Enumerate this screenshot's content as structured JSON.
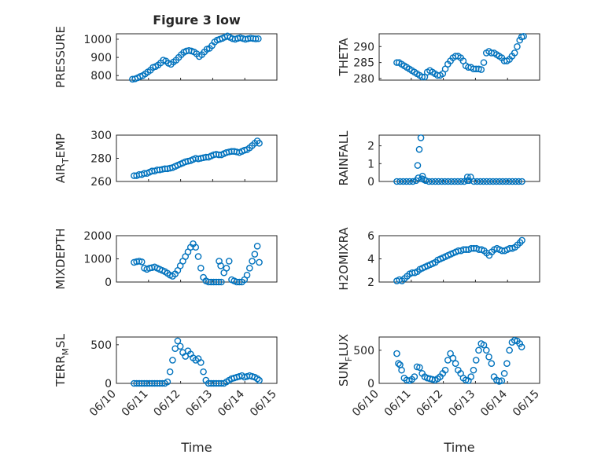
{
  "figure_title": "Figure 3 low",
  "colors": {
    "marker": "#0072bd",
    "axis": "#262626",
    "grid": "#bdbdbd"
  },
  "chart_data": [
    {
      "id": "pressure",
      "type": "scatter",
      "ylabel": "PRESSURE",
      "xlim": [
        0,
        5
      ],
      "ylim": [
        775,
        1030
      ],
      "yticks": [
        800,
        900,
        1000
      ],
      "yticklabels": [
        "800",
        "900",
        "1000"
      ],
      "grid": true,
      "x": [
        0.5,
        0.58,
        0.66,
        0.74,
        0.82,
        0.9,
        0.98,
        1.06,
        1.14,
        1.22,
        1.3,
        1.38,
        1.46,
        1.54,
        1.62,
        1.7,
        1.78,
        1.86,
        1.94,
        2.02,
        2.1,
        2.18,
        2.26,
        2.34,
        2.42,
        2.5,
        2.58,
        2.66,
        2.74,
        2.82,
        2.9,
        2.98,
        3.06,
        3.14,
        3.22,
        3.3,
        3.38,
        3.46,
        3.54,
        3.62,
        3.7,
        3.78,
        3.86,
        3.94,
        4.02,
        4.1,
        4.18,
        4.26,
        4.34,
        4.42
      ],
      "y": [
        780,
        782,
        788,
        795,
        800,
        810,
        820,
        830,
        845,
        850,
        858,
        870,
        885,
        880,
        868,
        862,
        875,
        885,
        900,
        915,
        928,
        935,
        938,
        935,
        930,
        920,
        905,
        915,
        930,
        945,
        950,
        965,
        985,
        995,
        1000,
        1005,
        1012,
        1018,
        1010,
        1003,
        1000,
        1005,
        1008,
        1004,
        1000,
        1003,
        1006,
        1004,
        1002,
        1003
      ]
    },
    {
      "id": "theta",
      "type": "scatter",
      "ylabel": "THETA",
      "xlim": [
        0,
        5
      ],
      "ylim": [
        279.5,
        294
      ],
      "yticks": [
        280,
        285,
        290
      ],
      "yticklabels": [
        "280",
        "285",
        "290"
      ],
      "grid": true,
      "x": [
        0.55,
        0.62,
        0.7,
        0.78,
        0.86,
        0.94,
        1.02,
        1.1,
        1.18,
        1.26,
        1.34,
        1.42,
        1.5,
        1.58,
        1.66,
        1.74,
        1.82,
        1.9,
        1.98,
        2.06,
        2.14,
        2.22,
        2.3,
        2.38,
        2.46,
        2.54,
        2.62,
        2.7,
        2.78,
        2.86,
        2.94,
        3.02,
        3.1,
        3.18,
        3.26,
        3.34,
        3.42,
        3.5,
        3.58,
        3.66,
        3.74,
        3.82,
        3.9,
        3.98,
        4.06,
        4.14,
        4.22,
        4.3,
        4.38,
        4.44,
        4.5
      ],
      "y": [
        285,
        285,
        284.5,
        284,
        283.5,
        283,
        282.5,
        282,
        281.5,
        281,
        280.5,
        280.5,
        282,
        282.5,
        282,
        281.5,
        281,
        281,
        281.5,
        283,
        284.5,
        285.5,
        286.5,
        287,
        287,
        286.5,
        285.5,
        284,
        283.5,
        283.5,
        283,
        283,
        283,
        282.8,
        285,
        288,
        288.5,
        288,
        288,
        287.5,
        287,
        286.5,
        285.5,
        285.5,
        286,
        287,
        288,
        290,
        292,
        293,
        293.2
      ]
    },
    {
      "id": "air_temp",
      "type": "scatter",
      "ylabel": "AIR",
      "ylabel_sub": "T",
      "ylabel_rest": "EMP",
      "xlim": [
        0,
        5
      ],
      "ylim": [
        260,
        300
      ],
      "yticks": [
        260,
        280,
        300
      ],
      "yticklabels": [
        "260",
        "280",
        "300"
      ],
      "grid": true,
      "x": [
        0.55,
        0.63,
        0.71,
        0.79,
        0.87,
        0.95,
        1.03,
        1.11,
        1.19,
        1.27,
        1.35,
        1.43,
        1.51,
        1.59,
        1.67,
        1.75,
        1.83,
        1.91,
        1.99,
        2.07,
        2.15,
        2.23,
        2.31,
        2.39,
        2.47,
        2.55,
        2.63,
        2.71,
        2.79,
        2.87,
        2.95,
        3.03,
        3.11,
        3.19,
        3.27,
        3.35,
        3.43,
        3.51,
        3.59,
        3.67,
        3.75,
        3.83,
        3.91,
        3.99,
        4.07,
        4.15,
        4.23,
        4.31,
        4.39,
        4.45
      ],
      "y": [
        265,
        265,
        266,
        266,
        267,
        267,
        268,
        269,
        269,
        270,
        270,
        270.5,
        271,
        271,
        271.5,
        272,
        273,
        274,
        275,
        276,
        277,
        277.5,
        278,
        279,
        280,
        279.5,
        280,
        280.5,
        281,
        281,
        282,
        283,
        283.5,
        283,
        283,
        284,
        285,
        285.5,
        286,
        286,
        285.5,
        285,
        286,
        287,
        287.5,
        289,
        291,
        293,
        295,
        293
      ]
    },
    {
      "id": "rainfall",
      "type": "scatter",
      "ylabel": "RAINFALL",
      "xlim": [
        0,
        5
      ],
      "ylim": [
        0,
        2.6
      ],
      "yticks": [
        0,
        1,
        2
      ],
      "yticklabels": [
        "0",
        "1",
        "2"
      ],
      "grid": true,
      "x": [
        0.55,
        0.65,
        0.75,
        0.85,
        0.95,
        1.05,
        1.15,
        1.2,
        1.25,
        1.3,
        1.35,
        1.4,
        1.45,
        1.55,
        1.65,
        1.75,
        1.85,
        1.95,
        2.05,
        2.15,
        2.25,
        2.35,
        2.45,
        2.55,
        2.65,
        2.75,
        2.85,
        2.95,
        3.05,
        3.15,
        3.25,
        3.35,
        3.45,
        3.55,
        3.65,
        3.75,
        3.85,
        3.95,
        4.05,
        4.15,
        4.25,
        4.35,
        4.45,
        1.22,
        1.33,
        2.75,
        2.8
      ],
      "y": [
        0,
        0,
        0,
        0,
        0,
        0,
        0.05,
        0.9,
        1.8,
        2.45,
        0.3,
        0.1,
        0.05,
        0,
        0,
        0,
        0,
        0,
        0,
        0,
        0,
        0,
        0,
        0,
        0,
        0.25,
        0.25,
        0,
        0,
        0,
        0,
        0,
        0,
        0,
        0,
        0,
        0,
        0,
        0,
        0,
        0,
        0,
        0,
        0.2,
        0.15,
        0.05,
        0.05
      ]
    },
    {
      "id": "mixdepth",
      "type": "scatter",
      "ylabel": "MIXDEPTH",
      "xlim": [
        0,
        5
      ],
      "ylim": [
        0,
        2000
      ],
      "yticks": [
        0,
        1000,
        2000
      ],
      "yticklabels": [
        "0",
        "1000",
        "2000"
      ],
      "grid": true,
      "x": [
        0.55,
        0.63,
        0.71,
        0.79,
        0.87,
        0.95,
        1.03,
        1.11,
        1.19,
        1.27,
        1.35,
        1.43,
        1.51,
        1.59,
        1.67,
        1.75,
        1.83,
        1.91,
        1.99,
        2.07,
        2.15,
        2.23,
        2.31,
        2.39,
        2.47,
        2.55,
        2.63,
        2.71,
        2.79,
        2.87,
        2.95,
        3.03,
        3.11,
        3.19,
        3.27,
        3.35,
        3.43,
        3.51,
        3.59,
        3.67,
        3.75,
        3.83,
        3.91,
        3.99,
        4.07,
        4.15,
        4.23,
        4.31,
        4.39,
        4.45,
        3.2,
        3.25
      ],
      "y": [
        850,
        880,
        900,
        870,
        600,
        550,
        600,
        620,
        650,
        600,
        550,
        500,
        450,
        380,
        300,
        250,
        350,
        500,
        700,
        900,
        1100,
        1300,
        1500,
        1650,
        1500,
        1100,
        600,
        200,
        50,
        0,
        0,
        0,
        0,
        0,
        0,
        400,
        600,
        900,
        100,
        50,
        0,
        0,
        0,
        100,
        300,
        600,
        900,
        1200,
        1550,
        850,
        900,
        700
      ]
    },
    {
      "id": "h2omixra",
      "type": "scatter",
      "ylabel": "H2OMIXRA",
      "xlim": [
        0,
        5
      ],
      "ylim": [
        2,
        6
      ],
      "yticks": [
        2,
        4,
        6
      ],
      "yticklabels": [
        "2",
        "4",
        "6"
      ],
      "grid": true,
      "x": [
        0.55,
        0.63,
        0.71,
        0.79,
        0.87,
        0.95,
        1.03,
        1.11,
        1.19,
        1.27,
        1.35,
        1.43,
        1.51,
        1.59,
        1.67,
        1.75,
        1.83,
        1.91,
        1.99,
        2.07,
        2.15,
        2.23,
        2.31,
        2.39,
        2.47,
        2.55,
        2.63,
        2.71,
        2.79,
        2.87,
        2.95,
        3.03,
        3.11,
        3.19,
        3.27,
        3.35,
        3.43,
        3.51,
        3.59,
        3.67,
        3.75,
        3.83,
        3.91,
        3.99,
        4.07,
        4.15,
        4.23,
        4.31,
        4.39,
        4.45
      ],
      "y": [
        2.1,
        2.2,
        2.1,
        2.3,
        2.5,
        2.7,
        2.8,
        2.8,
        2.9,
        3.1,
        3.2,
        3.3,
        3.4,
        3.5,
        3.6,
        3.7,
        3.9,
        4.0,
        4.1,
        4.2,
        4.3,
        4.4,
        4.5,
        4.6,
        4.7,
        4.7,
        4.8,
        4.8,
        4.8,
        4.9,
        4.9,
        4.9,
        4.8,
        4.8,
        4.7,
        4.5,
        4.3,
        4.6,
        4.8,
        4.9,
        4.8,
        4.7,
        4.7,
        4.8,
        4.9,
        4.9,
        5.0,
        5.2,
        5.4,
        5.6
      ]
    },
    {
      "id": "terr_msl",
      "type": "scatter",
      "ylabel": "TERR",
      "ylabel_sub": "M",
      "ylabel_rest": "SL",
      "xlim": [
        0,
        5
      ],
      "ylim": [
        0,
        600
      ],
      "yticks": [
        0,
        500
      ],
      "yticklabels": [
        "0",
        "500"
      ],
      "grid": true,
      "x": [
        0.55,
        0.63,
        0.71,
        0.79,
        0.87,
        0.95,
        1.03,
        1.11,
        1.19,
        1.27,
        1.35,
        1.43,
        1.51,
        1.59,
        1.67,
        1.75,
        1.83,
        1.91,
        1.99,
        2.07,
        2.15,
        2.23,
        2.31,
        2.39,
        2.47,
        2.55,
        2.63,
        2.71,
        2.79,
        2.87,
        2.95,
        3.03,
        3.11,
        3.19,
        3.27,
        3.35,
        3.43,
        3.51,
        3.59,
        3.67,
        3.75,
        3.83,
        3.91,
        3.99,
        4.07,
        4.15,
        4.23,
        4.31,
        4.39,
        4.45
      ],
      "y": [
        0,
        0,
        0,
        0,
        0,
        0,
        0,
        0,
        0,
        0,
        0,
        0,
        0,
        20,
        150,
        300,
        450,
        550,
        480,
        400,
        350,
        420,
        380,
        330,
        300,
        320,
        270,
        150,
        40,
        0,
        0,
        0,
        0,
        0,
        0,
        0,
        20,
        40,
        60,
        70,
        80,
        90,
        100,
        80,
        90,
        100,
        90,
        80,
        60,
        40
      ]
    },
    {
      "id": "sun_flux",
      "type": "scatter",
      "ylabel": "SUN",
      "ylabel_sub": "F",
      "ylabel_rest": "LUX",
      "xlim": [
        0,
        5
      ],
      "ylim": [
        0,
        700
      ],
      "yticks": [
        0,
        500
      ],
      "yticklabels": [
        "0",
        "500"
      ],
      "grid": true,
      "x": [
        0.55,
        0.6,
        0.65,
        0.7,
        0.78,
        0.86,
        0.94,
        1.02,
        1.1,
        1.18,
        1.26,
        1.34,
        1.42,
        1.5,
        1.58,
        1.66,
        1.74,
        1.82,
        1.9,
        1.98,
        2.06,
        2.14,
        2.22,
        2.3,
        2.38,
        2.46,
        2.54,
        2.62,
        2.7,
        2.78,
        2.86,
        2.94,
        3.02,
        3.1,
        3.18,
        3.26,
        3.34,
        3.42,
        3.5,
        3.58,
        3.66,
        3.74,
        3.82,
        3.9,
        3.98,
        4.06,
        4.14,
        4.22,
        4.3,
        4.38,
        4.44
      ],
      "y": [
        450,
        300,
        280,
        200,
        80,
        50,
        40,
        60,
        100,
        250,
        240,
        150,
        100,
        80,
        70,
        60,
        50,
        70,
        100,
        150,
        200,
        350,
        450,
        380,
        300,
        200,
        150,
        80,
        50,
        40,
        100,
        200,
        350,
        500,
        600,
        580,
        500,
        400,
        300,
        100,
        50,
        30,
        40,
        150,
        300,
        500,
        620,
        650,
        640,
        600,
        550
      ]
    }
  ],
  "x_axis": {
    "ticks": [
      0,
      1,
      2,
      3,
      4,
      5
    ],
    "ticklabels": [
      "06/10",
      "06/11",
      "06/12",
      "06/13",
      "06/14",
      "06/15"
    ],
    "label": "Time"
  }
}
